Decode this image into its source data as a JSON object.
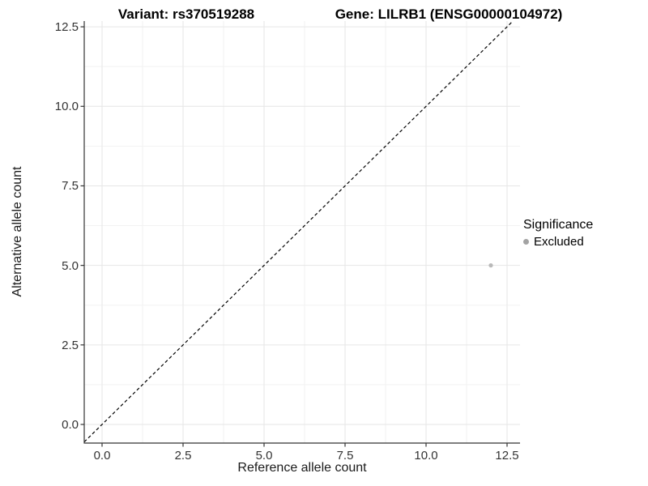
{
  "chart_data": {
    "type": "scatter",
    "title_left": "Variant: rs370519288",
    "title_right": "Gene: LILRB1 (ENSG00000104972)",
    "xlabel": "Reference allele count",
    "ylabel": "Alternative allele count",
    "xlim": [
      -0.55,
      12.9
    ],
    "ylim": [
      -0.59,
      12.67
    ],
    "x_ticks": [
      0,
      2.5,
      5,
      7.5,
      10,
      12.5
    ],
    "x_tick_labels": [
      "0.0",
      "2.5",
      "5.0",
      "7.5",
      "10.0",
      "12.5"
    ],
    "y_ticks": [
      0,
      2.5,
      5,
      7.5,
      10,
      12.5
    ],
    "y_tick_labels": [
      "0.0",
      "2.5",
      "5.0",
      "7.5",
      "10.0",
      "12.5"
    ],
    "grid": {
      "major": true,
      "minor": true,
      "major_color": "#e6e6e6",
      "minor_color": "#f2f2f2"
    },
    "axis_color": "#333333",
    "reference_line": {
      "type": "identity y = x",
      "style": "dashed",
      "color": "#000000"
    },
    "series": [
      {
        "name": "Excluded",
        "color": "#b9b9b9",
        "points": [
          {
            "x": 12,
            "y": 5
          }
        ]
      }
    ],
    "legend": {
      "title": "Significance",
      "position": "right",
      "entries": [
        {
          "label": "Excluded",
          "color": "#a3a3a3"
        }
      ]
    }
  }
}
